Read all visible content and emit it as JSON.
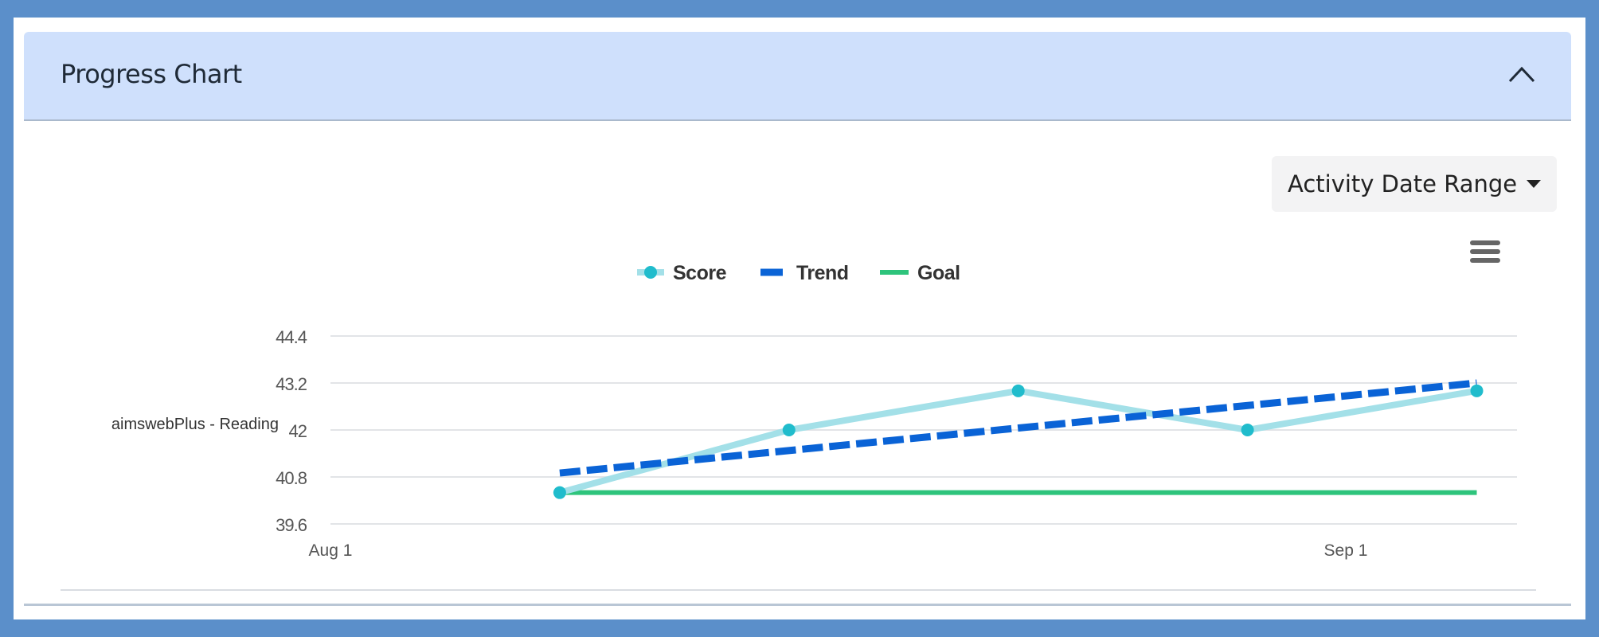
{
  "panel": {
    "title": "Progress Chart",
    "date_range_label": "Activity Date Range",
    "collapse_icon": "chevron-up-icon",
    "menu_icon": "hamburger-icon"
  },
  "colors": {
    "score_line": "#a3e0e8",
    "score_marker": "#20bccc",
    "trend": "#0a63d6",
    "goal": "#2ec47c",
    "grid": "#e2e4e7",
    "header_bg": "#cfe0fc",
    "frame": "#5b8fca"
  },
  "chart_data": {
    "type": "line",
    "title": "",
    "ylabel": "aimswebPlus - Reading",
    "xlabel": "",
    "legend": [
      "Score",
      "Trend",
      "Goal"
    ],
    "legend_position": "top-center",
    "grid": true,
    "ylim": [
      39.6,
      44.4
    ],
    "yticks": [
      "44.4",
      "43.2",
      "42",
      "40.8",
      "39.6"
    ],
    "xlim": [
      "2023-08-01",
      "2023-09-05"
    ],
    "xticks": [
      {
        "date": "2023-08-01",
        "label": "Aug 1"
      },
      {
        "date": "2023-09-01",
        "label": "Sep 1"
      }
    ],
    "series": [
      {
        "name": "Score",
        "points": [
          {
            "x": "2023-08-08",
            "y": 40.4
          },
          {
            "x": "2023-08-15",
            "y": 42.0
          },
          {
            "x": "2023-08-22",
            "y": 43.0
          },
          {
            "x": "2023-08-29",
            "y": 42.0
          },
          {
            "x": "2023-09-05",
            "y": 43.0
          }
        ]
      },
      {
        "name": "Trend",
        "points": [
          {
            "x": "2023-08-08",
            "y": 40.9
          },
          {
            "x": "2023-09-05",
            "y": 43.2
          }
        ]
      },
      {
        "name": "Goal",
        "points": [
          {
            "x": "2023-08-08",
            "y": 40.4
          },
          {
            "x": "2023-09-05",
            "y": 40.4
          }
        ]
      }
    ]
  }
}
